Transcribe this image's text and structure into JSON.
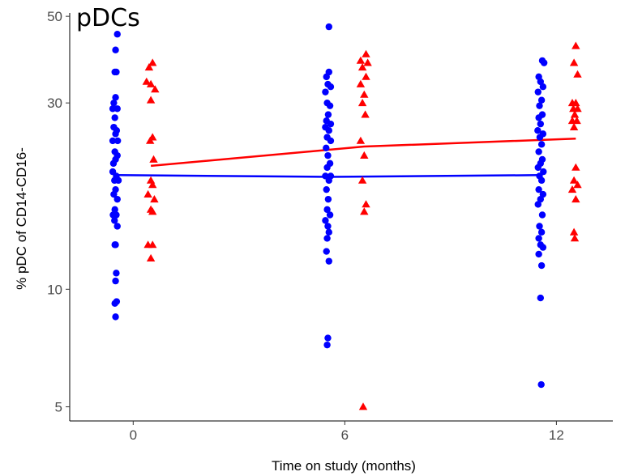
{
  "chart_data": {
    "type": "scatter",
    "title": "pDCs",
    "xlabel": "Time on study (months)",
    "ylabel": "% pDC of CD14-CD16-",
    "x_ticks": [
      0,
      6,
      12
    ],
    "y_ticks": [
      5,
      10,
      30,
      50
    ],
    "y_scale": "log",
    "xlim": [
      -1.8,
      13.6
    ],
    "ylim": [
      4.6,
      51
    ],
    "grid": false,
    "legend": "none",
    "series": [
      {
        "color": "#0000ff",
        "marker": "circle",
        "points": [
          {
            "x": -0.45,
            "y": 45
          },
          {
            "x": -0.5,
            "y": 41
          },
          {
            "x": -0.52,
            "y": 36
          },
          {
            "x": -0.48,
            "y": 36
          },
          {
            "x": -0.55,
            "y": 30
          },
          {
            "x": -0.5,
            "y": 31
          },
          {
            "x": -0.58,
            "y": 29
          },
          {
            "x": -0.45,
            "y": 29
          },
          {
            "x": -0.52,
            "y": 27.5
          },
          {
            "x": -0.55,
            "y": 26
          },
          {
            "x": -0.47,
            "y": 25.5
          },
          {
            "x": -0.5,
            "y": 25
          },
          {
            "x": -0.58,
            "y": 24
          },
          {
            "x": -0.44,
            "y": 24
          },
          {
            "x": -0.52,
            "y": 22.5
          },
          {
            "x": -0.56,
            "y": 21
          },
          {
            "x": -0.5,
            "y": 21.5
          },
          {
            "x": -0.45,
            "y": 22
          },
          {
            "x": -0.58,
            "y": 20
          },
          {
            "x": -0.48,
            "y": 19.5
          },
          {
            "x": -0.53,
            "y": 19
          },
          {
            "x": -0.42,
            "y": 19
          },
          {
            "x": -0.5,
            "y": 18
          },
          {
            "x": -0.55,
            "y": 17.5
          },
          {
            "x": -0.45,
            "y": 17
          },
          {
            "x": -0.52,
            "y": 16
          },
          {
            "x": -0.57,
            "y": 15.5
          },
          {
            "x": -0.48,
            "y": 15.5
          },
          {
            "x": -0.53,
            "y": 15
          },
          {
            "x": -0.45,
            "y": 14.5
          },
          {
            "x": -0.5,
            "y": 13
          },
          {
            "x": -0.48,
            "y": 11
          },
          {
            "x": -0.52,
            "y": 13
          },
          {
            "x": -0.5,
            "y": 10.5
          },
          {
            "x": -0.47,
            "y": 9.3
          },
          {
            "x": -0.52,
            "y": 9.2
          },
          {
            "x": -0.5,
            "y": 8.5
          },
          {
            "x": 5.55,
            "y": 47
          },
          {
            "x": 5.55,
            "y": 36
          },
          {
            "x": 5.48,
            "y": 35
          },
          {
            "x": 5.52,
            "y": 33.5
          },
          {
            "x": 5.6,
            "y": 33
          },
          {
            "x": 5.45,
            "y": 32
          },
          {
            "x": 5.5,
            "y": 30
          },
          {
            "x": 5.58,
            "y": 29.5
          },
          {
            "x": 5.53,
            "y": 28
          },
          {
            "x": 5.48,
            "y": 27
          },
          {
            "x": 5.6,
            "y": 26.5
          },
          {
            "x": 5.45,
            "y": 26
          },
          {
            "x": 5.55,
            "y": 25.5
          },
          {
            "x": 5.5,
            "y": 24.5
          },
          {
            "x": 5.6,
            "y": 24
          },
          {
            "x": 5.47,
            "y": 23
          },
          {
            "x": 5.52,
            "y": 22
          },
          {
            "x": 5.58,
            "y": 21
          },
          {
            "x": 5.5,
            "y": 20.5
          },
          {
            "x": 5.45,
            "y": 19.5
          },
          {
            "x": 5.55,
            "y": 19
          },
          {
            "x": 5.6,
            "y": 19.5
          },
          {
            "x": 5.48,
            "y": 18
          },
          {
            "x": 5.53,
            "y": 17
          },
          {
            "x": 5.5,
            "y": 16
          },
          {
            "x": 5.58,
            "y": 15.5
          },
          {
            "x": 5.45,
            "y": 15
          },
          {
            "x": 5.52,
            "y": 14.5
          },
          {
            "x": 5.55,
            "y": 14
          },
          {
            "x": 5.5,
            "y": 13.5
          },
          {
            "x": 5.48,
            "y": 12.5
          },
          {
            "x": 5.55,
            "y": 11.8
          },
          {
            "x": 5.52,
            "y": 7.5
          },
          {
            "x": 5.5,
            "y": 7.2
          },
          {
            "x": 11.6,
            "y": 38.5
          },
          {
            "x": 11.65,
            "y": 38
          },
          {
            "x": 11.5,
            "y": 35
          },
          {
            "x": 11.55,
            "y": 34
          },
          {
            "x": 11.62,
            "y": 33
          },
          {
            "x": 11.48,
            "y": 32
          },
          {
            "x": 11.58,
            "y": 30.5
          },
          {
            "x": 11.52,
            "y": 29.5
          },
          {
            "x": 11.6,
            "y": 28
          },
          {
            "x": 11.5,
            "y": 27.5
          },
          {
            "x": 11.55,
            "y": 26.5
          },
          {
            "x": 11.47,
            "y": 25.5
          },
          {
            "x": 11.62,
            "y": 25
          },
          {
            "x": 11.53,
            "y": 24.5
          },
          {
            "x": 11.58,
            "y": 23.5
          },
          {
            "x": 11.5,
            "y": 22.5
          },
          {
            "x": 11.6,
            "y": 21.5
          },
          {
            "x": 11.55,
            "y": 21
          },
          {
            "x": 11.48,
            "y": 20.5
          },
          {
            "x": 11.63,
            "y": 20
          },
          {
            "x": 11.52,
            "y": 19.5
          },
          {
            "x": 11.58,
            "y": 19
          },
          {
            "x": 11.5,
            "y": 18
          },
          {
            "x": 11.62,
            "y": 17.5
          },
          {
            "x": 11.55,
            "y": 17
          },
          {
            "x": 11.48,
            "y": 16.5
          },
          {
            "x": 11.6,
            "y": 15.5
          },
          {
            "x": 11.52,
            "y": 14.5
          },
          {
            "x": 11.58,
            "y": 14
          },
          {
            "x": 11.5,
            "y": 13.5
          },
          {
            "x": 11.55,
            "y": 13
          },
          {
            "x": 11.62,
            "y": 12.8
          },
          {
            "x": 11.5,
            "y": 12.3
          },
          {
            "x": 11.58,
            "y": 11.5
          },
          {
            "x": 11.55,
            "y": 9.5
          },
          {
            "x": 11.57,
            "y": 5.7
          }
        ],
        "trend": [
          {
            "x": -0.5,
            "y": 19.6
          },
          {
            "x": 5.55,
            "y": 19.4
          },
          {
            "x": 11.55,
            "y": 19.6
          }
        ]
      },
      {
        "color": "#ff0000",
        "marker": "triangle",
        "points": [
          {
            "x": 0.55,
            "y": 38
          },
          {
            "x": 0.45,
            "y": 37
          },
          {
            "x": 0.38,
            "y": 34
          },
          {
            "x": 0.5,
            "y": 33.5
          },
          {
            "x": 0.62,
            "y": 32.5
          },
          {
            "x": 0.5,
            "y": 30.5
          },
          {
            "x": 0.55,
            "y": 24.5
          },
          {
            "x": 0.48,
            "y": 24
          },
          {
            "x": 0.58,
            "y": 21.5
          },
          {
            "x": 0.5,
            "y": 19
          },
          {
            "x": 0.55,
            "y": 18.5
          },
          {
            "x": 0.42,
            "y": 17.5
          },
          {
            "x": 0.6,
            "y": 17
          },
          {
            "x": 0.5,
            "y": 16
          },
          {
            "x": 0.55,
            "y": 15.8
          },
          {
            "x": 0.42,
            "y": 13
          },
          {
            "x": 0.55,
            "y": 13
          },
          {
            "x": 0.5,
            "y": 12
          },
          {
            "x": 6.6,
            "y": 40
          },
          {
            "x": 6.45,
            "y": 38.5
          },
          {
            "x": 6.5,
            "y": 37
          },
          {
            "x": 6.65,
            "y": 38
          },
          {
            "x": 6.6,
            "y": 35
          },
          {
            "x": 6.45,
            "y": 33.5
          },
          {
            "x": 6.55,
            "y": 31.5
          },
          {
            "x": 6.5,
            "y": 30
          },
          {
            "x": 6.58,
            "y": 28
          },
          {
            "x": 6.45,
            "y": 24
          },
          {
            "x": 6.55,
            "y": 22
          },
          {
            "x": 6.5,
            "y": 19
          },
          {
            "x": 6.6,
            "y": 16.5
          },
          {
            "x": 6.55,
            "y": 15.8
          },
          {
            "x": 6.52,
            "y": 5
          },
          {
            "x": 12.55,
            "y": 42
          },
          {
            "x": 12.5,
            "y": 38
          },
          {
            "x": 12.6,
            "y": 35.5
          },
          {
            "x": 12.45,
            "y": 30
          },
          {
            "x": 12.55,
            "y": 30
          },
          {
            "x": 12.48,
            "y": 29
          },
          {
            "x": 12.6,
            "y": 29
          },
          {
            "x": 12.52,
            "y": 28
          },
          {
            "x": 12.45,
            "y": 27
          },
          {
            "x": 12.58,
            "y": 27
          },
          {
            "x": 12.5,
            "y": 26
          },
          {
            "x": 12.55,
            "y": 20.5
          },
          {
            "x": 12.5,
            "y": 19
          },
          {
            "x": 12.6,
            "y": 18.5
          },
          {
            "x": 12.45,
            "y": 18
          },
          {
            "x": 12.55,
            "y": 17
          },
          {
            "x": 12.5,
            "y": 14
          },
          {
            "x": 12.52,
            "y": 13.5
          }
        ],
        "trend": [
          {
            "x": 0.5,
            "y": 20.7
          },
          {
            "x": 6.55,
            "y": 23.2
          },
          {
            "x": 12.55,
            "y": 24.3
          }
        ]
      }
    ]
  }
}
